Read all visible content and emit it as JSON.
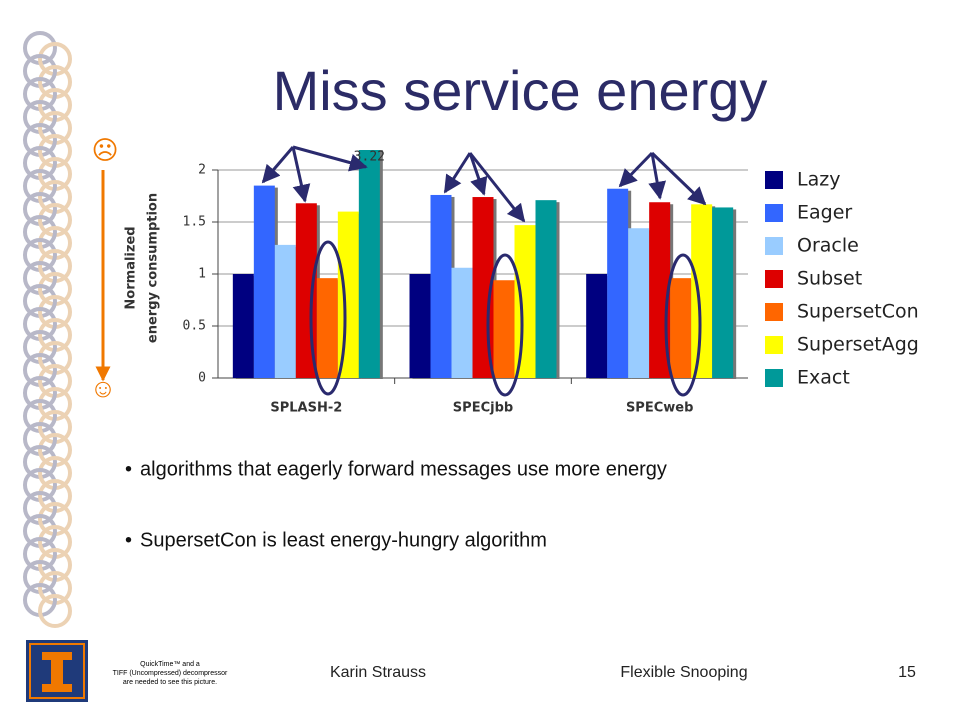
{
  "title": "Miss service energy",
  "faces": [
    "☹",
    "☺"
  ],
  "bullets": [
    "algorithms that eagerly forward messages use more energy",
    "SupersetCon is least energy-hungry algorithm"
  ],
  "footer": {
    "author": "Karin Strauss",
    "talk": "Flexible Snooping",
    "page": "15",
    "placeholder": [
      "QuickTime™ and a",
      "TIFF (Uncompressed) decompressor",
      "are needed to see this picture."
    ]
  },
  "chart_data": {
    "type": "bar",
    "ylabel": [
      "Normalized",
      "energy consumption"
    ],
    "categories": [
      "SPLASH-2",
      "SPECjbb",
      "SPECweb"
    ],
    "ylim": [
      0,
      2
    ],
    "yticks": [
      0,
      0.5,
      1,
      1.5,
      2
    ],
    "grid": true,
    "legend": "right",
    "series": [
      {
        "name": "Lazy",
        "color": "#000080",
        "values": [
          1,
          1,
          1
        ]
      },
      {
        "name": "Eager",
        "color": "#3366ff",
        "values": [
          1.85,
          1.76,
          1.82
        ]
      },
      {
        "name": "Oracle",
        "color": "#99ccff",
        "values": [
          1.28,
          1.06,
          1.44
        ]
      },
      {
        "name": "Subset",
        "color": "#dd0000",
        "values": [
          1.68,
          1.74,
          1.69
        ]
      },
      {
        "name": "SupersetCon",
        "color": "#ff6600",
        "values": [
          0.96,
          0.94,
          0.96
        ]
      },
      {
        "name": "SupersetAgg",
        "color": "#ffff00",
        "values": [
          1.6,
          1.47,
          1.67
        ]
      },
      {
        "name": "Exact",
        "color": "#009999",
        "values": [
          3.22,
          1.71,
          1.64
        ],
        "value_labels": [
          "3.22",
          null,
          null
        ]
      }
    ]
  }
}
